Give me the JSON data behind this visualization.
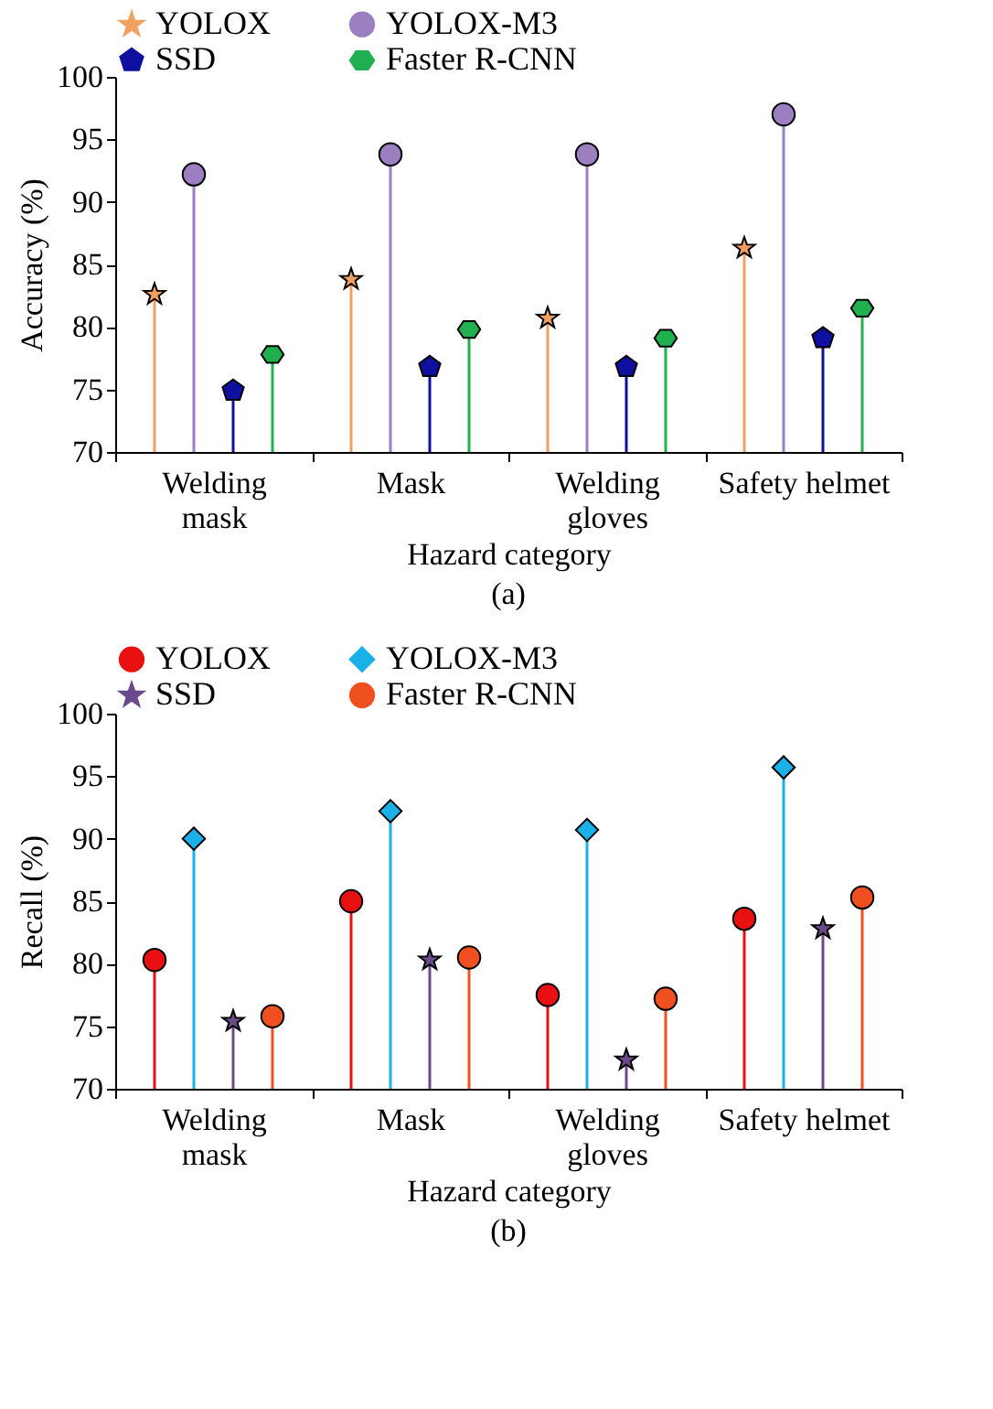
{
  "chart_data": [
    {
      "type": "lollipop",
      "xlabel": "Hazard category",
      "ylabel": "Accuracy (%)",
      "annotations": [
        "(a)"
      ],
      "categories": [
        "Welding\nmask",
        "Mask",
        "Welding\ngloves",
        "Safety helmet"
      ],
      "ylim": [
        70,
        100
      ],
      "yticks": [
        70,
        75,
        80,
        85,
        90,
        95,
        100
      ],
      "grid": false,
      "legend": "top",
      "series": [
        {
          "name": "YOLOX",
          "color": "#f0a060",
          "marker": "star",
          "values": [
            82.6,
            83.8,
            80.7,
            86.3
          ]
        },
        {
          "name": "YOLOX-M3",
          "color": "#9b7fc0",
          "marker": "circle",
          "values": [
            92.2,
            93.8,
            93.8,
            97.0
          ]
        },
        {
          "name": "SSD",
          "color": "#1010a0",
          "values": [
            74.9,
            76.8,
            76.8,
            79.1
          ]
        },
        {
          "name": "Faster R-CNN",
          "color": "#20b050",
          "values": [
            77.8,
            79.8,
            79.1,
            81.5
          ]
        }
      ]
    },
    {
      "type": "lollipop",
      "xlabel": "Hazard category",
      "ylabel": "Recall (%)",
      "annotations": [
        "(b)"
      ],
      "categories": [
        "Welding\nmask",
        "Mask",
        "Welding\ngloves",
        "Safety helmet"
      ],
      "ylim": [
        70,
        100
      ],
      "yticks": [
        70,
        75,
        80,
        85,
        90,
        95,
        100
      ],
      "grid": false,
      "legend": "top",
      "series": [
        {
          "name": "YOLOX",
          "color": "#e81010",
          "marker": "circle",
          "values": [
            80.3,
            85.0,
            77.5,
            83.6
          ]
        },
        {
          "name": "YOLOX-M3",
          "color": "#1ab0e8",
          "marker": "diamond",
          "values": [
            90.0,
            92.2,
            90.7,
            95.7
          ]
        },
        {
          "name": "SSD",
          "color": "#6a4a8a",
          "marker": "star",
          "values": [
            75.4,
            80.3,
            72.3,
            82.8
          ]
        },
        {
          "name": "Faster R-CNN",
          "color": "#f05020",
          "marker": "circle",
          "values": [
            75.8,
            80.5,
            77.2,
            85.3
          ]
        }
      ]
    }
  ]
}
